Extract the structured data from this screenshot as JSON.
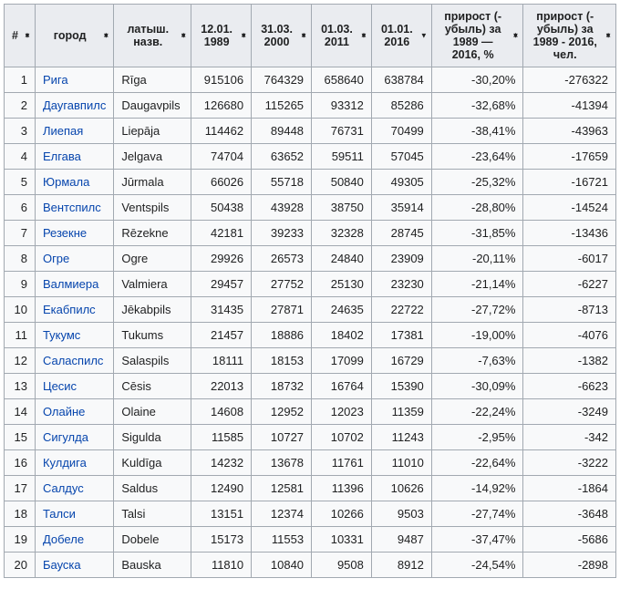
{
  "table": {
    "headers": {
      "num": "#",
      "city": "город",
      "lat_name": "латыш. назв.",
      "d1989": "12.01. 1989",
      "d2000": "31.03. 2000",
      "d2011": "01.03. 2011",
      "d2016": "01.01. 2016",
      "growth_pct": "прирост (-убыль) за 1989 — 2016, %",
      "growth_abs": "прирост (-убыль) за 1989 - 2016, чел."
    },
    "link_color": "#0645ad",
    "border_color": "#a2a9b1",
    "header_bg": "#eaecf0",
    "cell_bg": "#f8f9fa",
    "sorted_col": "d2016",
    "rows": [
      {
        "n": "1",
        "city": "Рига",
        "lat": "Rīga",
        "v1989": "915106",
        "v2000": "764329",
        "v2011": "658640",
        "v2016": "638784",
        "pct": "-30,20%",
        "abs": "-276322"
      },
      {
        "n": "2",
        "city": "Даугавпилс",
        "lat": "Daugavpils",
        "v1989": "126680",
        "v2000": "115265",
        "v2011": "93312",
        "v2016": "85286",
        "pct": "-32,68%",
        "abs": "-41394"
      },
      {
        "n": "3",
        "city": "Лиепая",
        "lat": "Liepāja",
        "v1989": "114462",
        "v2000": "89448",
        "v2011": "76731",
        "v2016": "70499",
        "pct": "-38,41%",
        "abs": "-43963"
      },
      {
        "n": "4",
        "city": "Елгава",
        "lat": "Jelgava",
        "v1989": "74704",
        "v2000": "63652",
        "v2011": "59511",
        "v2016": "57045",
        "pct": "-23,64%",
        "abs": "-17659"
      },
      {
        "n": "5",
        "city": "Юрмала",
        "lat": "Jūrmala",
        "v1989": "66026",
        "v2000": "55718",
        "v2011": "50840",
        "v2016": "49305",
        "pct": "-25,32%",
        "abs": "-16721"
      },
      {
        "n": "6",
        "city": "Вентспилс",
        "lat": "Ventspils",
        "v1989": "50438",
        "v2000": "43928",
        "v2011": "38750",
        "v2016": "35914",
        "pct": "-28,80%",
        "abs": "-14524"
      },
      {
        "n": "7",
        "city": "Резекне",
        "lat": "Rēzekne",
        "v1989": "42181",
        "v2000": "39233",
        "v2011": "32328",
        "v2016": "28745",
        "pct": "-31,85%",
        "abs": "-13436"
      },
      {
        "n": "8",
        "city": "Огре",
        "lat": "Ogre",
        "v1989": "29926",
        "v2000": "26573",
        "v2011": "24840",
        "v2016": "23909",
        "pct": "-20,11%",
        "abs": "-6017"
      },
      {
        "n": "9",
        "city": "Валмиера",
        "lat": "Valmiera",
        "v1989": "29457",
        "v2000": "27752",
        "v2011": "25130",
        "v2016": "23230",
        "pct": "-21,14%",
        "abs": "-6227"
      },
      {
        "n": "10",
        "city": "Екабпилс",
        "lat": "Jēkabpils",
        "v1989": "31435",
        "v2000": "27871",
        "v2011": "24635",
        "v2016": "22722",
        "pct": "-27,72%",
        "abs": "-8713"
      },
      {
        "n": "11",
        "city": "Тукумс",
        "lat": "Tukums",
        "v1989": "21457",
        "v2000": "18886",
        "v2011": "18402",
        "v2016": "17381",
        "pct": "-19,00%",
        "abs": "-4076"
      },
      {
        "n": "12",
        "city": "Саласпилс",
        "lat": "Salaspils",
        "v1989": "18111",
        "v2000": "18153",
        "v2011": "17099",
        "v2016": "16729",
        "pct": "-7,63%",
        "abs": "-1382"
      },
      {
        "n": "13",
        "city": "Цесис",
        "lat": "Cēsis",
        "v1989": "22013",
        "v2000": "18732",
        "v2011": "16764",
        "v2016": "15390",
        "pct": "-30,09%",
        "abs": "-6623"
      },
      {
        "n": "14",
        "city": "Олайне",
        "lat": "Olaine",
        "v1989": "14608",
        "v2000": "12952",
        "v2011": "12023",
        "v2016": "11359",
        "pct": "-22,24%",
        "abs": "-3249"
      },
      {
        "n": "15",
        "city": "Сигулда",
        "lat": "Sigulda",
        "v1989": "11585",
        "v2000": "10727",
        "v2011": "10702",
        "v2016": "11243",
        "pct": "-2,95%",
        "abs": "-342"
      },
      {
        "n": "16",
        "city": "Кулдига",
        "lat": "Kuldīga",
        "v1989": "14232",
        "v2000": "13678",
        "v2011": "11761",
        "v2016": "11010",
        "pct": "-22,64%",
        "abs": "-3222"
      },
      {
        "n": "17",
        "city": "Салдус",
        "lat": "Saldus",
        "v1989": "12490",
        "v2000": "12581",
        "v2011": "11396",
        "v2016": "10626",
        "pct": "-14,92%",
        "abs": "-1864"
      },
      {
        "n": "18",
        "city": "Талси",
        "lat": "Talsi",
        "v1989": "13151",
        "v2000": "12374",
        "v2011": "10266",
        "v2016": "9503",
        "pct": "-27,74%",
        "abs": "-3648"
      },
      {
        "n": "19",
        "city": "Добеле",
        "lat": "Dobele",
        "v1989": "15173",
        "v2000": "11553",
        "v2011": "10331",
        "v2016": "9487",
        "pct": "-37,47%",
        "abs": "-5686"
      },
      {
        "n": "20",
        "city": "Бауска",
        "lat": "Bauska",
        "v1989": "11810",
        "v2000": "10840",
        "v2011": "9508",
        "v2016": "8912",
        "pct": "-24,54%",
        "abs": "-2898"
      }
    ]
  }
}
